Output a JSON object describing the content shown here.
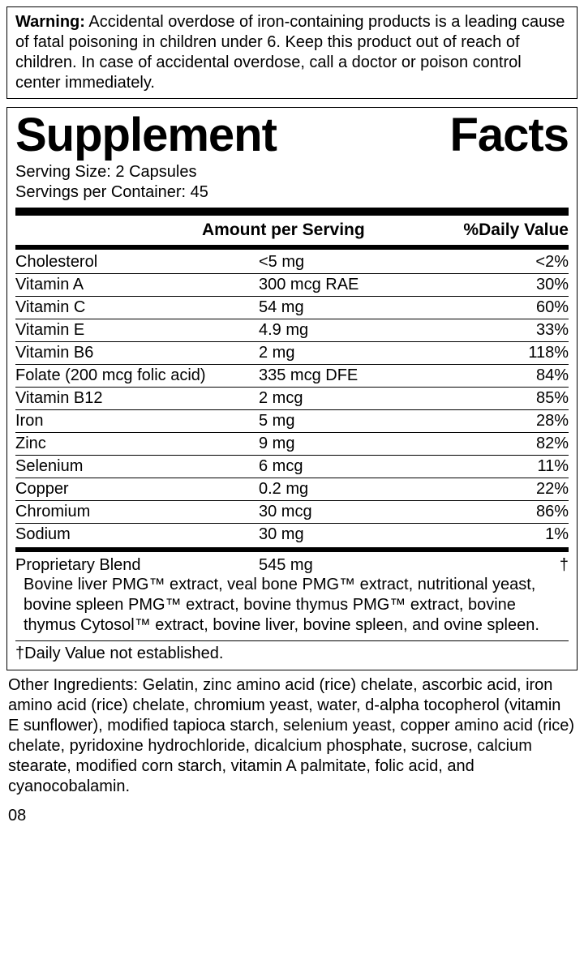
{
  "warning": {
    "label": "Warning:",
    "text": " Accidental overdose of iron-containing products is a leading cause of fatal poisoning in children under 6. Keep this product out of reach of children. In case of accidental overdose, call a doctor or poison control center immediately."
  },
  "title_a": "Supplement",
  "title_b": "Facts",
  "serving_size": "Serving Size: 2 Capsules",
  "servings_per": "Servings per Container: 45",
  "header": {
    "amount": "Amount per Serving",
    "dv": "%Daily Value"
  },
  "rows": [
    {
      "name": "Cholesterol",
      "amount": "<5 mg",
      "dv": "<2%"
    },
    {
      "name": "Vitamin A",
      "amount": "300 mcg RAE",
      "dv": "30%"
    },
    {
      "name": "Vitamin C",
      "amount": "54 mg",
      "dv": "60%"
    },
    {
      "name": "Vitamin E",
      "amount": "4.9 mg",
      "dv": "33%"
    },
    {
      "name": "Vitamin B6",
      "amount": "2 mg",
      "dv": "118%"
    },
    {
      "name": "Folate (200 mcg folic acid)",
      "amount": "335 mcg DFE",
      "dv": "84%"
    },
    {
      "name": "Vitamin B12",
      "amount": "2 mcg",
      "dv": "85%"
    },
    {
      "name": "Iron",
      "amount": "5 mg",
      "dv": "28%"
    },
    {
      "name": "Zinc",
      "amount": "9 mg",
      "dv": "82%"
    },
    {
      "name": "Selenium",
      "amount": "6 mcg",
      "dv": "11%"
    },
    {
      "name": "Copper",
      "amount": "0.2 mg",
      "dv": "22%"
    },
    {
      "name": "Chromium",
      "amount": "30 mcg",
      "dv": "86%"
    },
    {
      "name": "Sodium",
      "amount": "30 mg",
      "dv": "1%"
    }
  ],
  "blend": {
    "name": "Proprietary Blend",
    "amount": "545 mg",
    "dv": "†"
  },
  "blend_text": "Bovine liver PMG™ extract, veal bone PMG™ extract, nutritional yeast, bovine spleen PMG™ extract, bovine thymus PMG™ extract, bovine thymus Cytosol™ extract, bovine liver, bovine spleen, and ovine spleen.",
  "footnote": "†Daily Value not established.",
  "other": "Other Ingredients: Gelatin, zinc amino acid (rice) chelate, ascorbic acid, iron amino acid (rice) chelate, chromium yeast, water, d-alpha tocopherol (vitamin E sunflower), modified tapioca starch, selenium yeast, copper amino acid (rice) chelate, pyridoxine hydrochloride, dicalcium phosphate, sucrose, calcium stearate, modified corn starch, vitamin A palmitate,  folic acid, and cyanocobalamin.",
  "code": "08",
  "style": {
    "border_color": "#000000",
    "background": "#ffffff",
    "title_fontsize": 58,
    "body_fontsize": 20
  }
}
